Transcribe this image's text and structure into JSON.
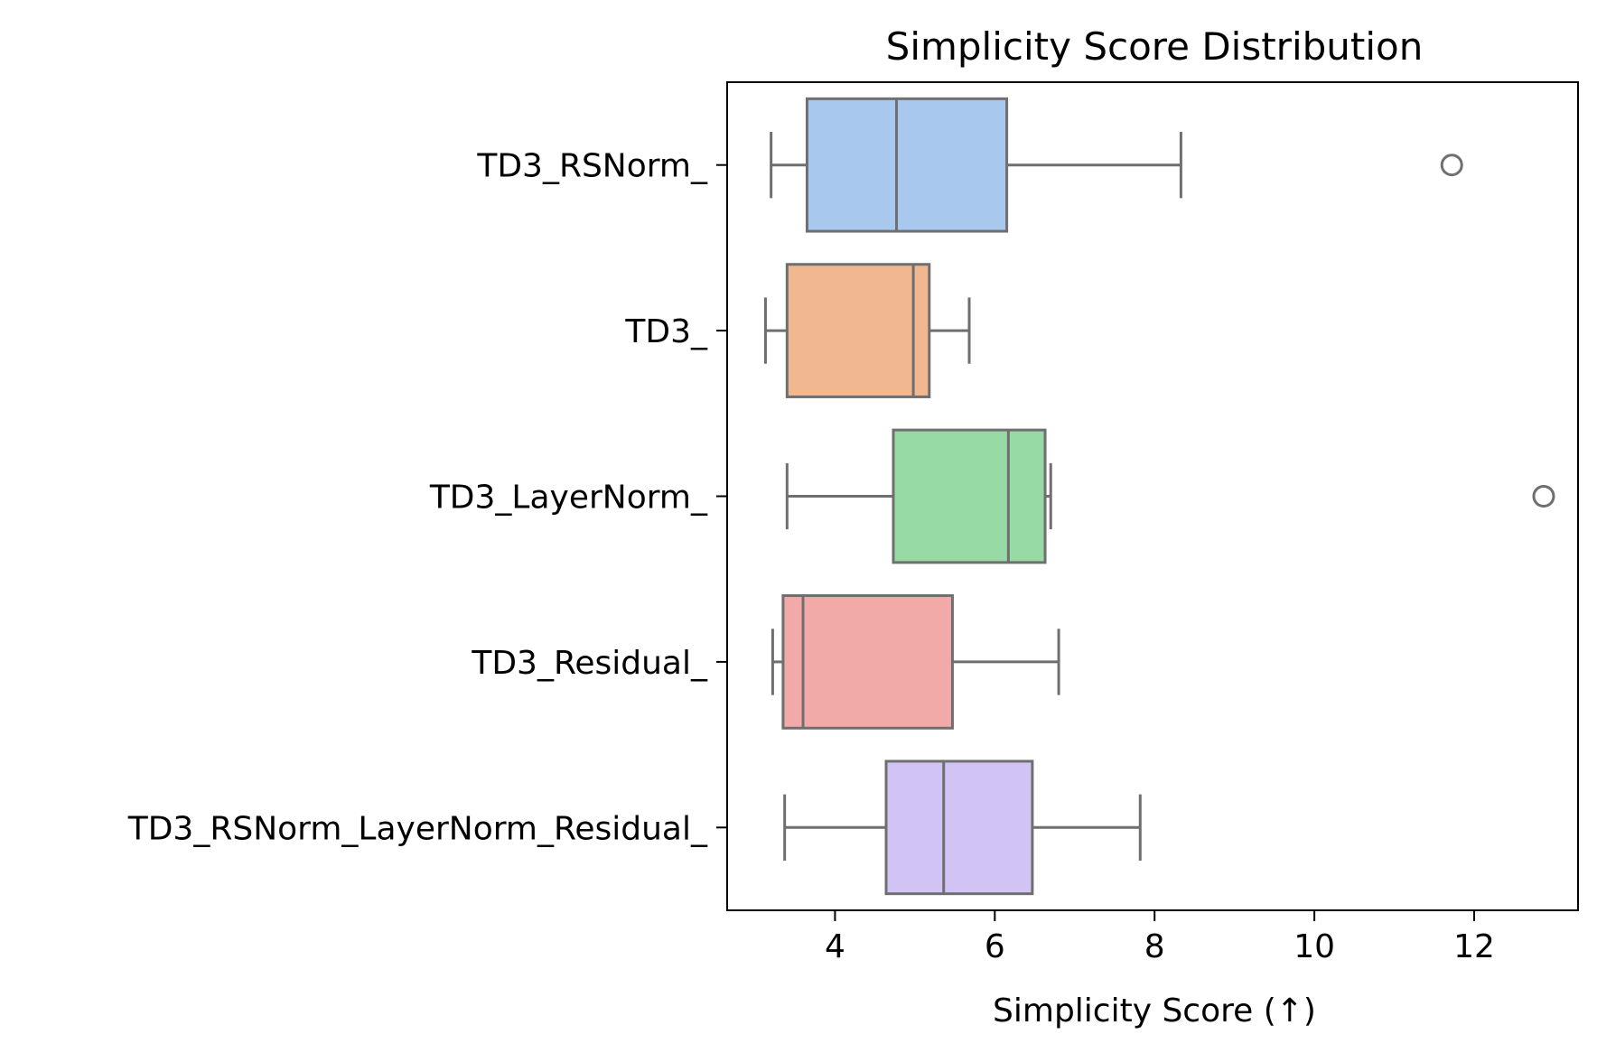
{
  "chart_data": {
    "type": "boxplot",
    "orientation": "horizontal",
    "title": "Simplicity Score Distribution",
    "xlabel": "Simplicity Score (↑)",
    "ylabel": "",
    "xlim": [
      2.65,
      13.3
    ],
    "xticks": [
      4,
      6,
      8,
      10,
      12
    ],
    "grid": false,
    "line_color": "#6f6f6f",
    "series": [
      {
        "category": "TD3_RSNorm_",
        "color": "#a8c8ed",
        "whisker_low": 3.2,
        "q1": 3.65,
        "median": 4.77,
        "q3": 6.15,
        "whisker_high": 8.33,
        "outliers": [
          11.72
        ]
      },
      {
        "category": "TD3_",
        "color": "#f0b790",
        "whisker_low": 3.13,
        "q1": 3.4,
        "median": 4.98,
        "q3": 5.18,
        "whisker_high": 5.68,
        "outliers": []
      },
      {
        "category": "TD3_LayerNorm_",
        "color": "#98daa6",
        "whisker_low": 3.4,
        "q1": 4.73,
        "median": 6.17,
        "q3": 6.63,
        "whisker_high": 6.7,
        "outliers": [
          12.87
        ]
      },
      {
        "category": "TD3_Residual_",
        "color": "#f2aaa8",
        "whisker_low": 3.22,
        "q1": 3.35,
        "median": 3.6,
        "q3": 5.47,
        "whisker_high": 6.8,
        "outliers": []
      },
      {
        "category": "TD3_RSNorm_LayerNorm_Residual_",
        "color": "#d1c4f5",
        "whisker_low": 3.37,
        "q1": 4.64,
        "median": 5.36,
        "q3": 6.47,
        "whisker_high": 7.82,
        "outliers": []
      }
    ]
  }
}
